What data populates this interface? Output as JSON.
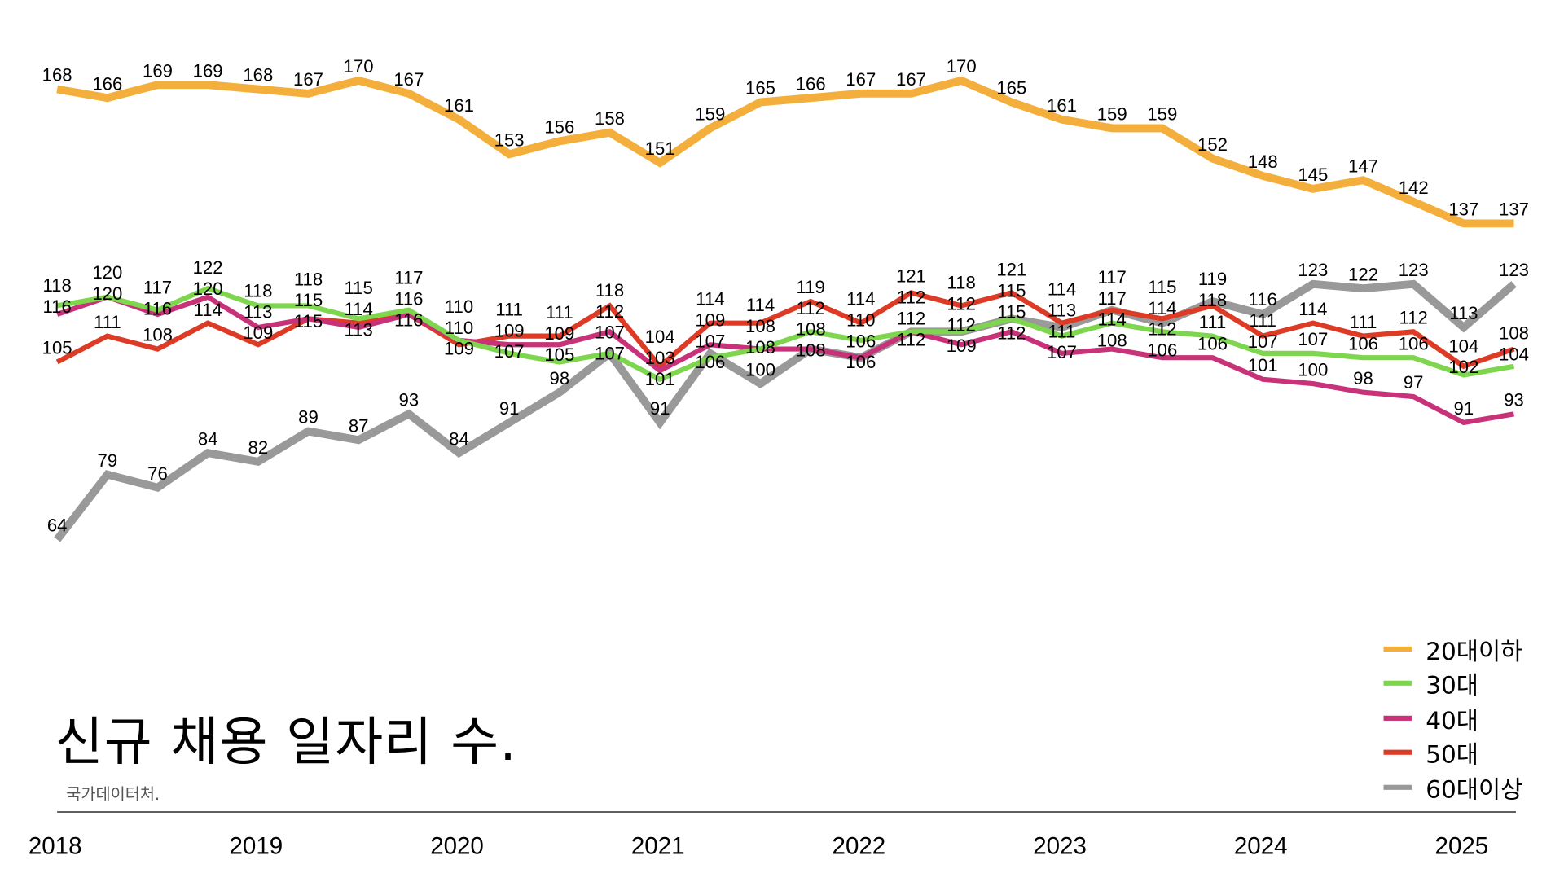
{
  "chart_data": {
    "type": "line",
    "title": "신규 채용 일자리 수.",
    "source": "국가데이터처.",
    "xlabel": "",
    "ylabel": "",
    "grid": false,
    "legend_position": "bottom-right",
    "x_ticks": [
      "2018",
      "2019",
      "2020",
      "2021",
      "2022",
      "2023",
      "2024",
      "2025"
    ],
    "x": [
      "2018Q1",
      "2018Q2",
      "2018Q3",
      "2018Q4",
      "2019Q1",
      "2019Q2",
      "2019Q3",
      "2019Q4",
      "2020Q1",
      "2020Q2",
      "2020Q3",
      "2020Q4",
      "2021Q1",
      "2021Q2",
      "2021Q3",
      "2021Q4",
      "2022Q1",
      "2022Q2",
      "2022Q3",
      "2022Q4",
      "2023Q1",
      "2023Q2",
      "2023Q3",
      "2023Q4",
      "2024Q1",
      "2024Q2",
      "2024Q3",
      "2024Q4",
      "2025Q1",
      "2025Q2"
    ],
    "ylim": [
      64,
      170
    ],
    "series": [
      {
        "name": "20대이하",
        "color": "#F4AE3B",
        "width": 8,
        "values": [
          168,
          166,
          169,
          169,
          168,
          167,
          170,
          167,
          161,
          153,
          156,
          158,
          151,
          159,
          165,
          166,
          167,
          167,
          170,
          165,
          161,
          159,
          159,
          152,
          148,
          145,
          147,
          142,
          137,
          137
        ]
      },
      {
        "name": "30대",
        "color": "#7ED64E",
        "width": 5,
        "values": [
          118,
          120,
          117,
          122,
          118,
          118,
          115,
          117,
          110,
          107,
          105,
          107,
          101,
          106,
          108,
          112,
          110,
          112,
          112,
          115,
          111,
          114,
          112,
          111,
          107,
          107,
          106,
          106,
          102,
          104
        ]
      },
      {
        "name": "40대",
        "color": "#C73279",
        "width": 5,
        "values": [
          116,
          120,
          116,
          120,
          113,
          115,
          113,
          116,
          110,
          109,
          109,
          112,
          103,
          109,
          108,
          108,
          106,
          112,
          109,
          112,
          107,
          108,
          106,
          106,
          101,
          100,
          98,
          97,
          91,
          93
        ]
      },
      {
        "name": "50대",
        "color": "#DD3B26",
        "width": 5,
        "values": [
          105,
          111,
          108,
          114,
          109,
          115,
          114,
          116,
          109,
          111,
          111,
          118,
          104,
          114,
          114,
          119,
          114,
          121,
          118,
          121,
          114,
          117,
          115,
          118,
          111,
          114,
          111,
          112,
          104,
          108
        ]
      },
      {
        "name": "60대이상",
        "color": "#999999",
        "width": 8,
        "values": [
          64,
          79,
          76,
          84,
          82,
          89,
          87,
          93,
          84,
          91,
          98,
          107,
          91,
          107,
          100,
          108,
          106,
          112,
          112,
          115,
          113,
          117,
          114,
          119,
          116,
          123,
          122,
          123,
          113,
          123
        ]
      }
    ]
  }
}
